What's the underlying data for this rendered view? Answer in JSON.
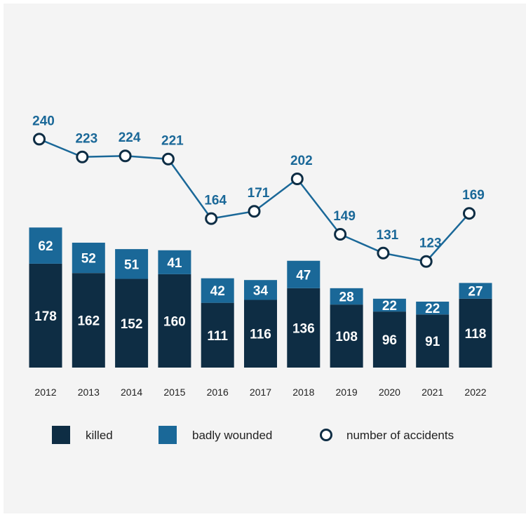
{
  "chart_data": {
    "type": "bar",
    "stacked": true,
    "categories": [
      "2012",
      "2013",
      "2014",
      "2015",
      "2016",
      "2017",
      "2018",
      "2019",
      "2020",
      "2021",
      "2022"
    ],
    "series": [
      {
        "name": "killed",
        "type": "bar",
        "color": "#0e2d44",
        "values": [
          178,
          162,
          152,
          160,
          111,
          116,
          136,
          108,
          96,
          91,
          118
        ]
      },
      {
        "name": "badly wounded",
        "type": "bar",
        "color": "#1a6898",
        "values": [
          62,
          52,
          51,
          41,
          42,
          34,
          47,
          28,
          22,
          22,
          27
        ]
      },
      {
        "name": "number of accidents",
        "type": "line",
        "color": "#1a6898",
        "values": [
          240,
          223,
          224,
          221,
          164,
          171,
          202,
          149,
          131,
          123,
          169
        ]
      }
    ],
    "legend": {
      "position": "bottom",
      "items": [
        "killed",
        "badly wounded",
        "number of accidents"
      ]
    },
    "grid": false
  },
  "colors": {
    "background": "#f4f4f4",
    "killed": "#0e2d44",
    "wounded": "#1a6898",
    "line": "#1a6898",
    "marker_stroke": "#0e2d44",
    "label_line": "#1a6898"
  }
}
